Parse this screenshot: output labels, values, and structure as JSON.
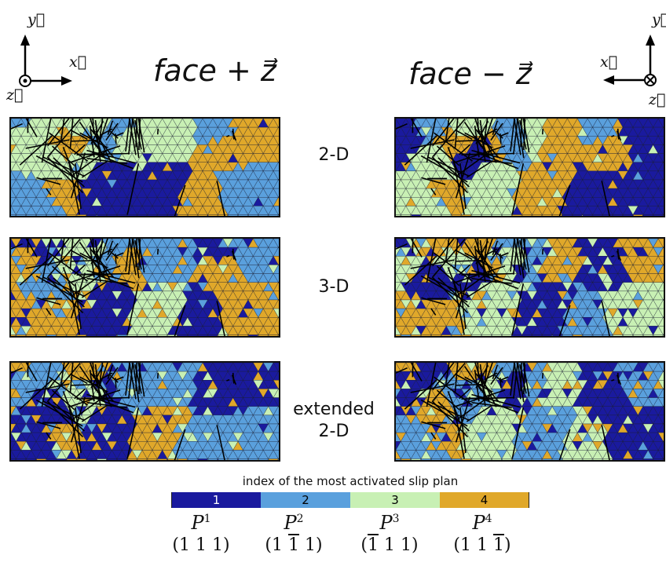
{
  "titles": {
    "left": "face + z⃗",
    "right": "face − z⃗"
  },
  "axes_left": {
    "y": "y⃗",
    "x": "x⃗",
    "z": "z⃗"
  },
  "axes_right": {
    "y": "y⃗",
    "x": "x⃗",
    "z": "z⃗"
  },
  "rows": [
    {
      "label_line1": "2-D",
      "label_line2": ""
    },
    {
      "label_line1": "3-D",
      "label_line2": ""
    },
    {
      "label_line1": "extended",
      "label_line2": "2-D"
    }
  ],
  "legend": {
    "title": "index of the most activated slip plan",
    "items": [
      {
        "index": "1",
        "color": "#1a1a9e",
        "plane": "P",
        "sup": "1",
        "miller": [
          "1",
          "1",
          "1"
        ],
        "bar": [
          false,
          false,
          false
        ]
      },
      {
        "index": "2",
        "color": "#5aa0dd",
        "plane": "P",
        "sup": "2",
        "miller": [
          "1",
          "1",
          "1"
        ],
        "bar": [
          false,
          true,
          false
        ]
      },
      {
        "index": "3",
        "color": "#c8f0b4",
        "plane": "P",
        "sup": "3",
        "miller": [
          "1",
          "1",
          "1"
        ],
        "bar": [
          true,
          false,
          false
        ]
      },
      {
        "index": "4",
        "color": "#e0a82a",
        "plane": "P",
        "sup": "4",
        "miller": [
          "1",
          "1",
          "1"
        ],
        "bar": [
          false,
          false,
          true
        ]
      }
    ]
  }
}
